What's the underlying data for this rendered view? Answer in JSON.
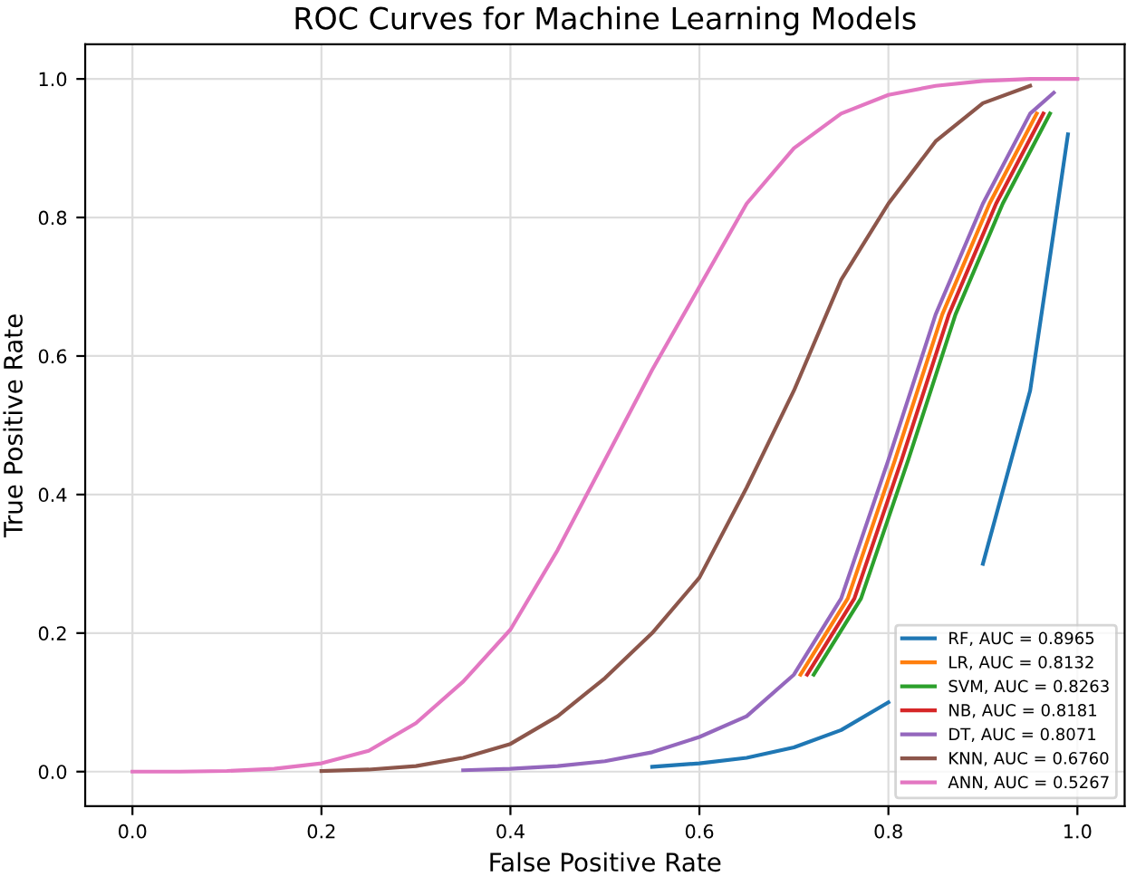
{
  "chart_data": {
    "type": "line",
    "title": "ROC Curves for Machine Learning Models",
    "xlabel": "False Positive Rate",
    "ylabel": "True Positive Rate",
    "series": [
      {
        "name": "RF, AUC = 0.8965",
        "color": "#1f77b4",
        "x": [
          0.55,
          0.6,
          0.65,
          0.7,
          0.75,
          0.8,
          0.85,
          0.9,
          0.95,
          0.975,
          0.99
        ],
        "values": [
          0.007,
          0.012,
          0.02,
          0.035,
          0.06,
          0.1,
          null,
          0.3,
          0.55,
          0.78,
          0.92
        ]
      },
      {
        "name": "LR, AUC = 0.8132",
        "color": "#ff7f0e",
        "x": [
          0.707,
          0.757,
          0.807,
          0.857,
          0.907,
          0.957
        ],
        "values": [
          0.14,
          0.25,
          0.45,
          0.66,
          0.82,
          0.95
        ]
      },
      {
        "name": "SVM, AUC = 0.8263",
        "color": "#2ca02c",
        "x": [
          0.721,
          0.771,
          0.821,
          0.871,
          0.921,
          0.971
        ],
        "values": [
          0.14,
          0.25,
          0.45,
          0.66,
          0.82,
          0.95
        ]
      },
      {
        "name": "NB, AUC = 0.8181",
        "color": "#d62728",
        "x": [
          0.714,
          0.764,
          0.814,
          0.864,
          0.914,
          0.964
        ],
        "values": [
          0.14,
          0.25,
          0.45,
          0.66,
          0.82,
          0.95
        ]
      },
      {
        "name": "DT, AUC = 0.8071",
        "color": "#9467bd",
        "x": [
          0.35,
          0.4,
          0.45,
          0.5,
          0.55,
          0.6,
          0.65,
          0.7,
          0.75,
          0.8,
          0.85,
          0.9,
          0.95,
          0.975
        ],
        "values": [
          0.002,
          0.004,
          0.008,
          0.015,
          0.028,
          0.05,
          0.08,
          0.14,
          0.25,
          0.45,
          0.66,
          0.82,
          0.95,
          0.98
        ]
      },
      {
        "name": "KNN, AUC = 0.6760",
        "color": "#8c564b",
        "x": [
          0.2,
          0.25,
          0.3,
          0.35,
          0.4,
          0.45,
          0.5,
          0.55,
          0.6,
          0.65,
          0.7,
          0.75,
          0.8,
          0.85,
          0.9,
          0.95
        ],
        "values": [
          0.001,
          0.003,
          0.008,
          0.02,
          0.04,
          0.08,
          0.135,
          0.2,
          0.28,
          0.41,
          0.55,
          0.71,
          0.82,
          0.91,
          0.965,
          0.99
        ]
      },
      {
        "name": "ANN, AUC = 0.5267",
        "color": "#e377c2",
        "x": [
          0,
          0.05,
          0.1,
          0.15,
          0.2,
          0.25,
          0.3,
          0.35,
          0.4,
          0.45,
          0.5,
          0.55,
          0.6,
          0.65,
          0.7,
          0.75,
          0.8,
          0.85,
          0.9,
          0.95,
          1
        ],
        "values": [
          0,
          0,
          0.001,
          0.004,
          0.012,
          0.03,
          0.07,
          0.13,
          0.205,
          0.32,
          0.45,
          0.58,
          0.7,
          0.82,
          0.9,
          0.95,
          0.977,
          0.99,
          0.997,
          1,
          1
        ]
      }
    ],
    "xlim": [
      -0.05,
      1.05
    ],
    "ylim": [
      -0.05,
      1.05
    ],
    "xticks": [
      {
        "value": 0,
        "label": "0.0"
      },
      {
        "value": 0.2,
        "label": "0.2"
      },
      {
        "value": 0.4,
        "label": "0.4"
      },
      {
        "value": 0.6,
        "label": "0.6"
      },
      {
        "value": 0.8,
        "label": "0.8"
      },
      {
        "value": 1,
        "label": "1.0"
      }
    ],
    "yticks": [
      {
        "value": 0,
        "label": "0.0"
      },
      {
        "value": 0.2,
        "label": "0.2"
      },
      {
        "value": 0.4,
        "label": "0.4"
      },
      {
        "value": 0.6,
        "label": "0.6"
      },
      {
        "value": 0.8,
        "label": "0.8"
      },
      {
        "value": 1,
        "label": "1.0"
      }
    ],
    "grid": true,
    "legend": "lower right"
  }
}
